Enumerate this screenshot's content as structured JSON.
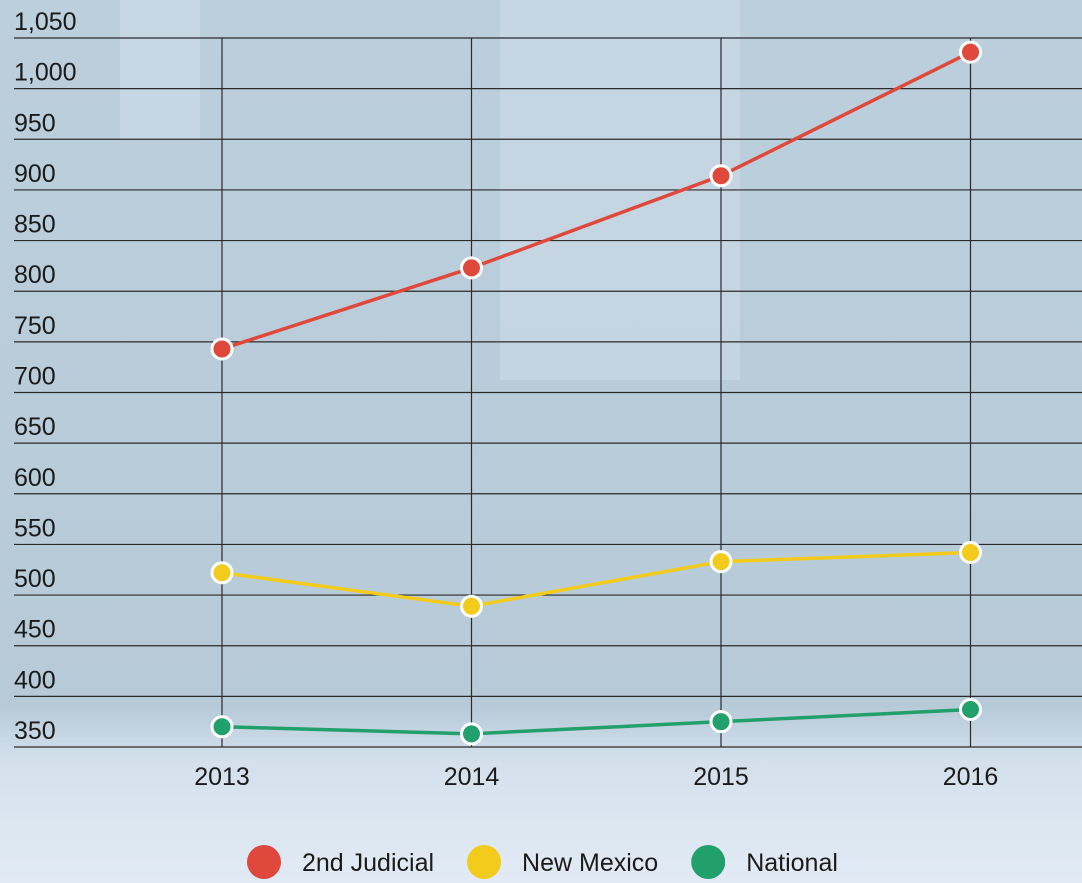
{
  "chart_data": {
    "type": "line",
    "categories": [
      "2013",
      "2014",
      "2015",
      "2016"
    ],
    "series": [
      {
        "name": "2nd Judicial",
        "color": "#e0483b",
        "values": [
          743,
          823,
          914,
          1036
        ]
      },
      {
        "name": "New Mexico",
        "color": "#f2cb1d",
        "values": [
          522,
          489,
          533,
          542
        ]
      },
      {
        "name": "National",
        "color": "#22a06b",
        "values": [
          370,
          363,
          375,
          387
        ]
      }
    ],
    "ylim": [
      350,
      1050
    ],
    "yticks": [
      350,
      400,
      450,
      500,
      550,
      600,
      650,
      700,
      750,
      800,
      850,
      900,
      950,
      {
        "value": 1000,
        "label": "1,000"
      },
      {
        "value": 1050,
        "label": "1,050"
      }
    ],
    "grid": true,
    "legend": "bottom"
  }
}
